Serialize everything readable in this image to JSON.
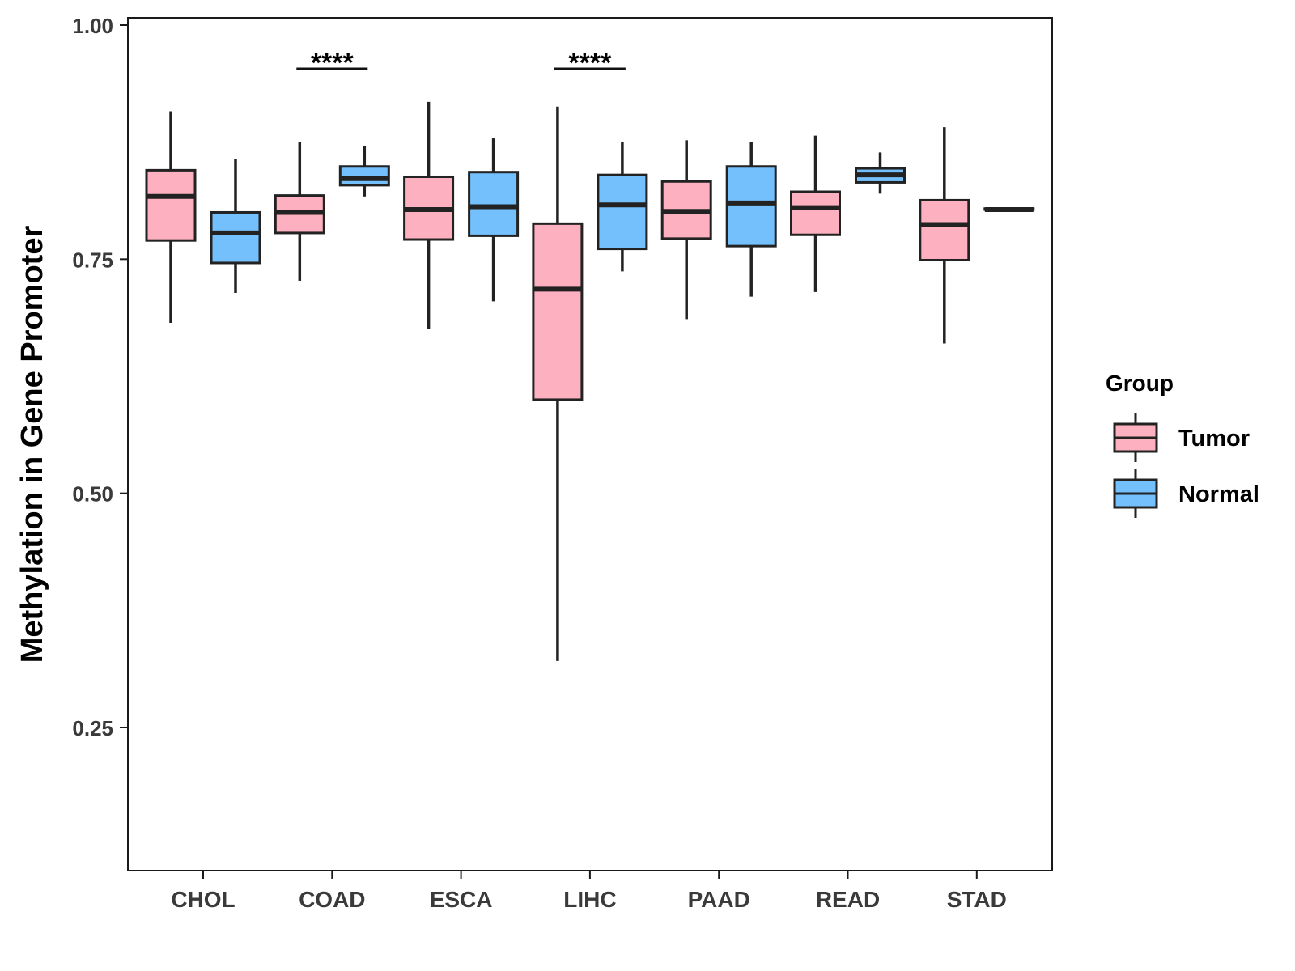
{
  "chart_data": {
    "type": "boxplot",
    "title": "",
    "xlabel": "",
    "ylabel": "Methylation in Gene Promoter",
    "ylim": [
      0.1,
      1.02
    ],
    "yticks": [
      {
        "value": 0.25,
        "label": "0.25"
      },
      {
        "value": 0.5,
        "label": "0.50"
      },
      {
        "value": 0.75,
        "label": "0.75"
      },
      {
        "value": 1.0,
        "label": "1.00"
      }
    ],
    "categories": [
      "CHOL",
      "COAD",
      "ESCA",
      "LIHC",
      "PAAD",
      "READ",
      "STAD"
    ],
    "legend": {
      "title": "Group",
      "position": "right",
      "entries": [
        {
          "name": "Tumor",
          "color": "#FDB0C0"
        },
        {
          "name": "Normal",
          "color": "#74C0FC"
        }
      ]
    },
    "series": [
      {
        "name": "Tumor",
        "color": "#FDB0C0",
        "boxes": [
          {
            "min": 0.682,
            "q1": 0.77,
            "median": 0.817,
            "q3": 0.845,
            "max": 0.908
          },
          {
            "min": 0.727,
            "q1": 0.778,
            "median": 0.8,
            "q3": 0.818,
            "max": 0.875
          },
          {
            "min": 0.676,
            "q1": 0.771,
            "median": 0.803,
            "q3": 0.838,
            "max": 0.918
          },
          {
            "min": 0.321,
            "q1": 0.6,
            "median": 0.718,
            "q3": 0.788,
            "max": 0.913
          },
          {
            "min": 0.686,
            "q1": 0.772,
            "median": 0.801,
            "q3": 0.833,
            "max": 0.877
          },
          {
            "min": 0.715,
            "q1": 0.776,
            "median": 0.805,
            "q3": 0.822,
            "max": 0.882
          },
          {
            "min": 0.66,
            "q1": 0.749,
            "median": 0.787,
            "q3": 0.813,
            "max": 0.891
          }
        ]
      },
      {
        "name": "Normal",
        "color": "#74C0FC",
        "boxes": [
          {
            "min": 0.714,
            "q1": 0.746,
            "median": 0.778,
            "q3": 0.8,
            "max": 0.857
          },
          {
            "min": 0.817,
            "q1": 0.829,
            "median": 0.836,
            "q3": 0.849,
            "max": 0.871
          },
          {
            "min": 0.705,
            "q1": 0.775,
            "median": 0.806,
            "q3": 0.843,
            "max": 0.879
          },
          {
            "min": 0.737,
            "q1": 0.761,
            "median": 0.808,
            "q3": 0.84,
            "max": 0.875
          },
          {
            "min": 0.71,
            "q1": 0.764,
            "median": 0.81,
            "q3": 0.849,
            "max": 0.875
          },
          {
            "min": 0.82,
            "q1": 0.832,
            "median": 0.84,
            "q3": 0.847,
            "max": 0.864
          },
          {
            "min": 0.803,
            "q1": 0.803,
            "median": 0.803,
            "q3": 0.804,
            "max": 0.804
          }
        ]
      }
    ],
    "annotations": [
      {
        "category": "COAD",
        "label": "****",
        "y": 0.962
      },
      {
        "category": "LIHC",
        "label": "****",
        "y": 0.962
      }
    ]
  }
}
